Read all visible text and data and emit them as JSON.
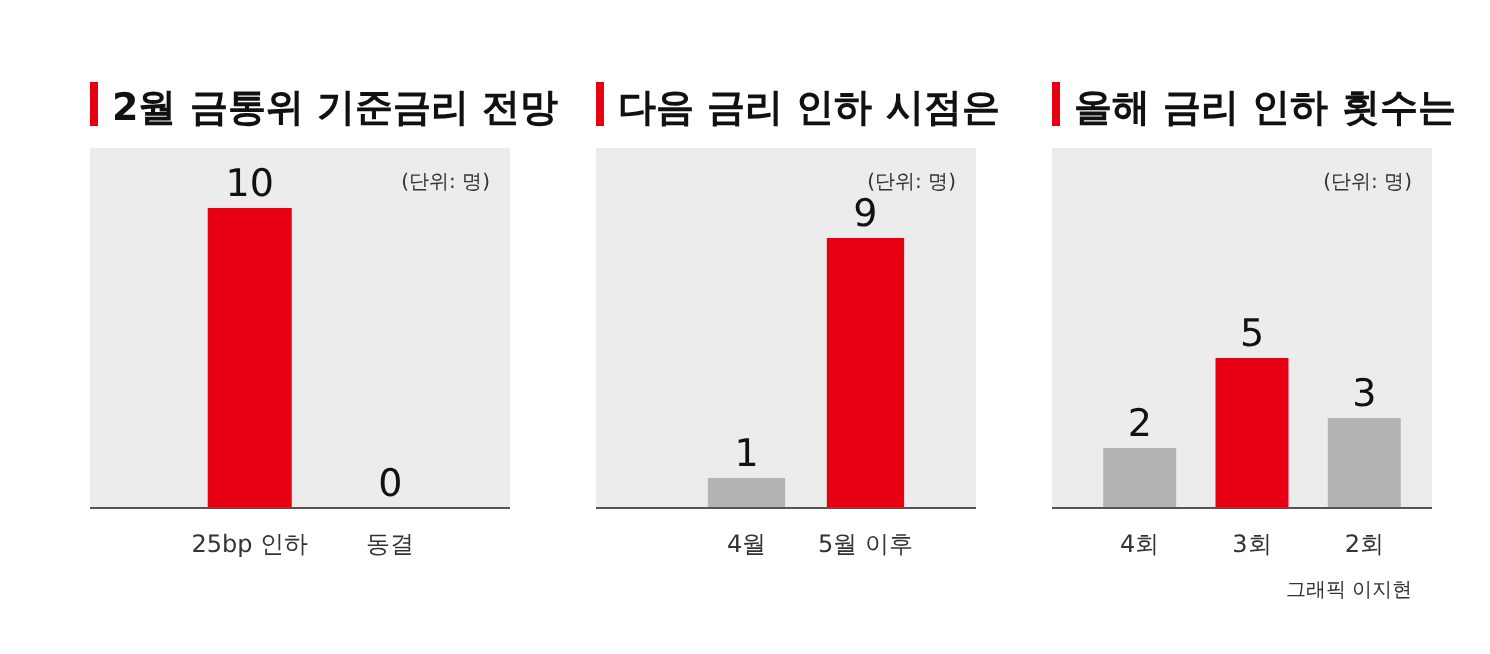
{
  "chart_data": [
    {
      "type": "bar",
      "title": "2월 금통위 기준금리 전망",
      "annotations": [
        "(단위: 명)"
      ],
      "categories": [
        "25bp 인하",
        "동결"
      ],
      "values": [
        10,
        0
      ],
      "colors": [
        "#e60012",
        "#e60012"
      ],
      "ylim": [
        0,
        12
      ],
      "data_labels": true
    },
    {
      "type": "bar",
      "title": "다음 금리 인하 시점은",
      "annotations": [
        "(단위: 명)"
      ],
      "categories": [
        "4월",
        "5월 이후"
      ],
      "values": [
        1,
        9
      ],
      "colors": [
        "#b4b4b4",
        "#e60012"
      ],
      "ylim": [
        0,
        12
      ],
      "data_labels": true
    },
    {
      "type": "bar",
      "title": "올해 금리 인하 횟수는",
      "annotations": [
        "(단위: 명)",
        "그래픽 이지현"
      ],
      "categories": [
        "4회",
        "3회",
        "2회"
      ],
      "values": [
        2,
        5,
        3
      ],
      "colors": [
        "#b4b4b4",
        "#e60012",
        "#b4b4b4"
      ],
      "ylim": [
        0,
        12
      ],
      "data_labels": true
    }
  ]
}
